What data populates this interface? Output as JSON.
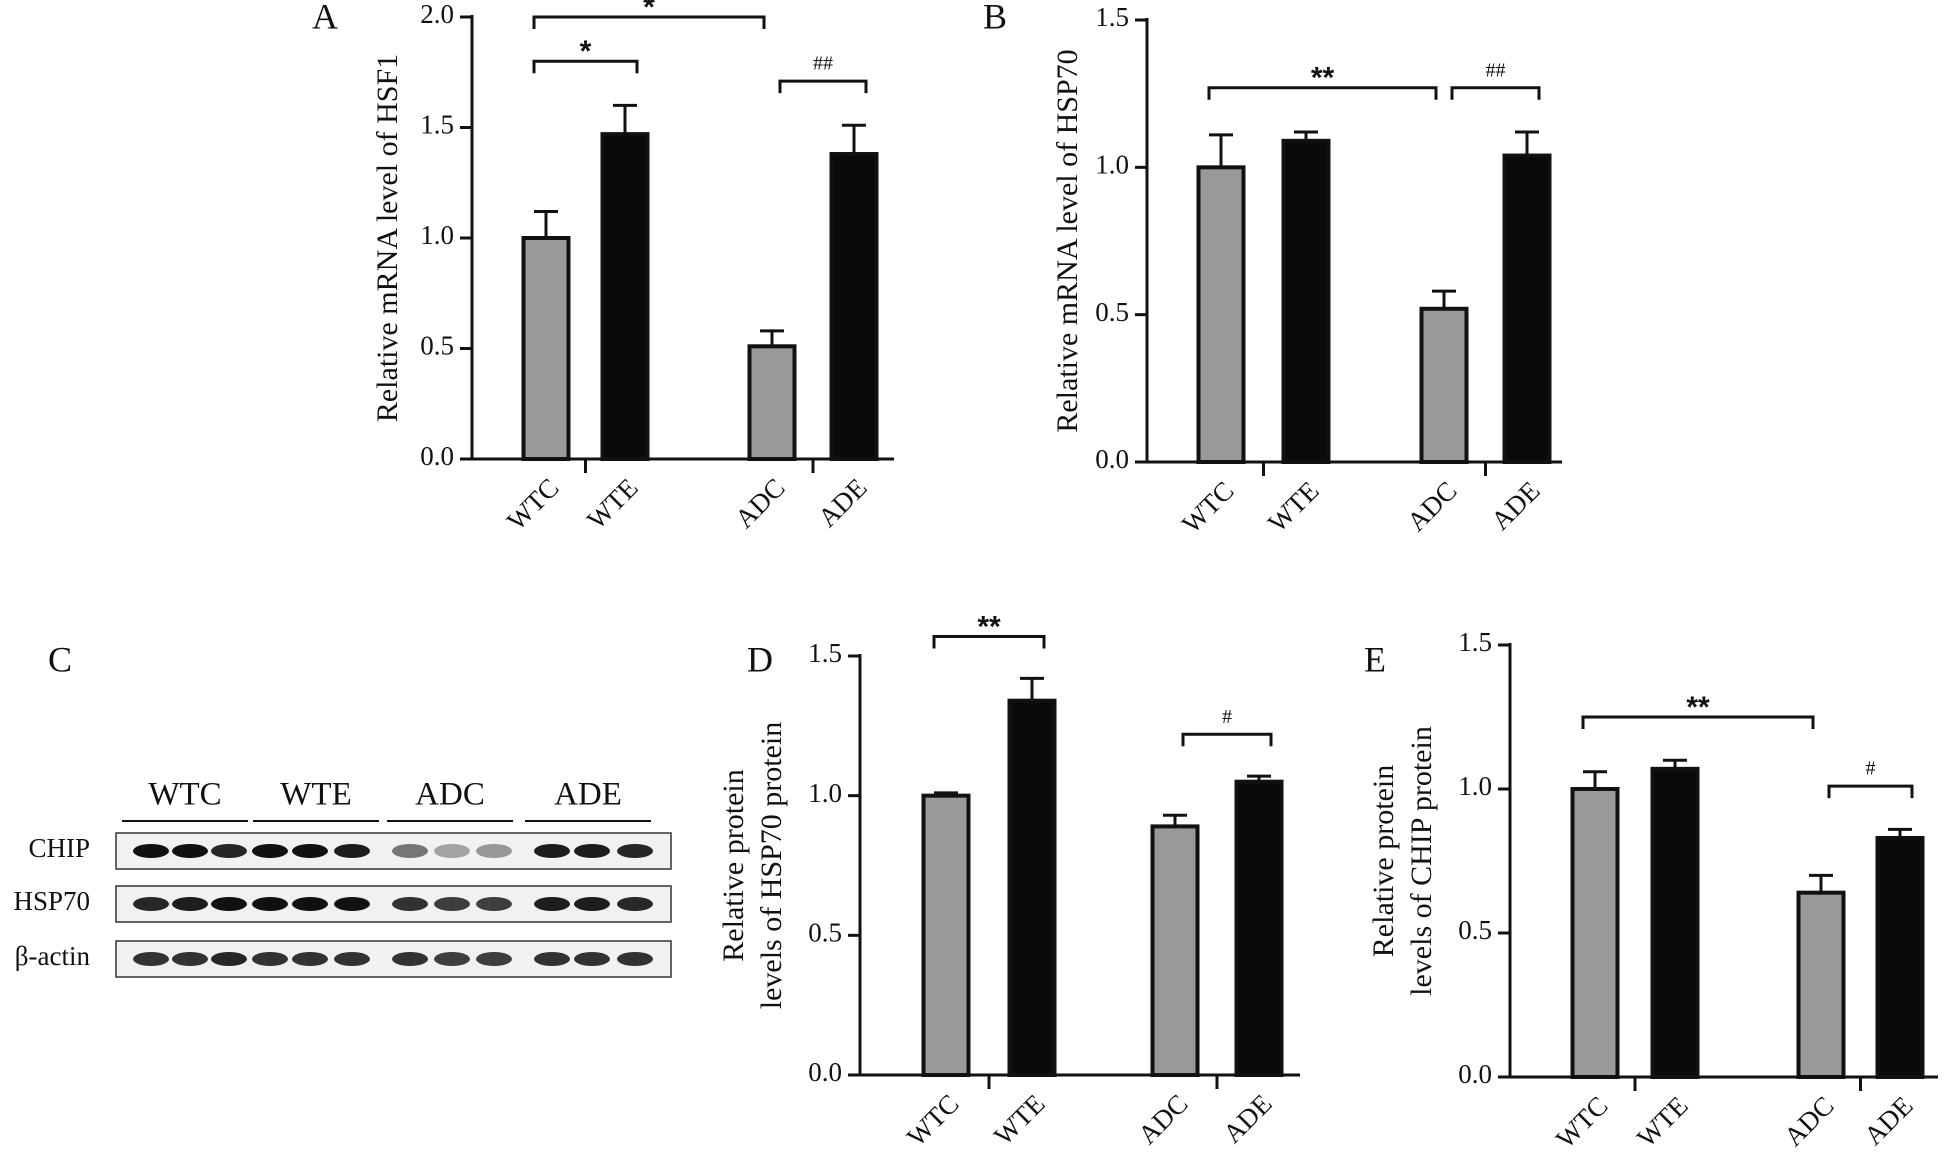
{
  "chart_data": [
    {
      "type": "bar",
      "panel": "A",
      "ylabel": "Relative mRNA level of HSF1",
      "categories": [
        "WTC",
        "WTE",
        "ADC",
        "ADE"
      ],
      "values": [
        1.0,
        1.47,
        0.51,
        1.38
      ],
      "errors": [
        0.12,
        0.13,
        0.07,
        0.13
      ],
      "colors": [
        "#999999",
        "#0a0a0a",
        "#999999",
        "#0a0a0a"
      ],
      "ylim": [
        0,
        2
      ],
      "yticks": [
        {
          "value": 0,
          "label": "0.0"
        },
        {
          "value": 0.5,
          "label": "0.5"
        },
        {
          "value": 1,
          "label": "1.0"
        },
        {
          "value": 1.5,
          "label": "1.5"
        },
        {
          "value": 2,
          "label": "2.0"
        }
      ],
      "brackets": [
        {
          "label": "*",
          "between": [
            0,
            1
          ]
        },
        {
          "label": "*",
          "between": [
            0,
            2
          ]
        },
        {
          "label": "##",
          "between": [
            2,
            3
          ]
        }
      ]
    },
    {
      "type": "bar",
      "panel": "B",
      "ylabel": "Relative mRNA level of HSP70",
      "categories": [
        "WTC",
        "WTE",
        "ADC",
        "ADE"
      ],
      "values": [
        1.0,
        1.09,
        0.52,
        1.04
      ],
      "errors": [
        0.11,
        0.03,
        0.06,
        0.08
      ],
      "colors": [
        "#999999",
        "#0a0a0a",
        "#999999",
        "#0a0a0a"
      ],
      "ylim": [
        0,
        1.5
      ],
      "yticks": [
        {
          "value": 0,
          "label": "0.0"
        },
        {
          "value": 0.5,
          "label": "0.5"
        },
        {
          "value": 1,
          "label": "1.0"
        },
        {
          "value": 1.5,
          "label": "1.5"
        }
      ],
      "brackets": [
        {
          "label": "**",
          "between": [
            0,
            2
          ]
        },
        {
          "label": "##",
          "between": [
            2,
            3
          ]
        }
      ]
    },
    {
      "type": "bar",
      "panel": "D",
      "ylabel": [
        "Relative protein",
        "levels of HSP70 protein"
      ],
      "categories": [
        "WTC",
        "WTE",
        "ADC",
        "ADE"
      ],
      "values": [
        1.0,
        1.34,
        0.89,
        1.05
      ],
      "errors": [
        0.01,
        0.08,
        0.04,
        0.02
      ],
      "colors": [
        "#999999",
        "#0a0a0a",
        "#999999",
        "#0a0a0a"
      ],
      "ylim": [
        0,
        1.5
      ],
      "yticks": [
        {
          "value": 0,
          "label": "0.0"
        },
        {
          "value": 0.5,
          "label": "0.5"
        },
        {
          "value": 1,
          "label": "1.0"
        },
        {
          "value": 1.5,
          "label": "1.5"
        }
      ],
      "brackets": [
        {
          "label": "**",
          "between": [
            0,
            1
          ]
        },
        {
          "label": "#",
          "between": [
            2,
            3
          ]
        }
      ]
    },
    {
      "type": "bar",
      "panel": "E",
      "ylabel": [
        "Relative protein",
        "levels of CHIP protein"
      ],
      "categories": [
        "WTC",
        "WTE",
        "ADC",
        "ADE"
      ],
      "values": [
        1.0,
        1.07,
        0.64,
        0.83
      ],
      "errors": [
        0.06,
        0.03,
        0.06,
        0.03
      ],
      "colors": [
        "#999999",
        "#0a0a0a",
        "#999999",
        "#0a0a0a"
      ],
      "ylim": [
        0,
        1.5
      ],
      "yticks": [
        {
          "value": 0,
          "label": "0.0"
        },
        {
          "value": 0.5,
          "label": "0.5"
        },
        {
          "value": 1,
          "label": "1.0"
        },
        {
          "value": 1.5,
          "label": "1.5"
        }
      ],
      "brackets": [
        {
          "label": "**",
          "between": [
            0,
            2
          ]
        },
        {
          "label": "#",
          "between": [
            2,
            3
          ]
        }
      ]
    }
  ],
  "blot": {
    "panel": "C",
    "groups": [
      "WTC",
      "WTE",
      "ADC",
      "ADE"
    ],
    "rows": [
      "CHIP",
      "HSP70",
      "β-actin"
    ]
  }
}
